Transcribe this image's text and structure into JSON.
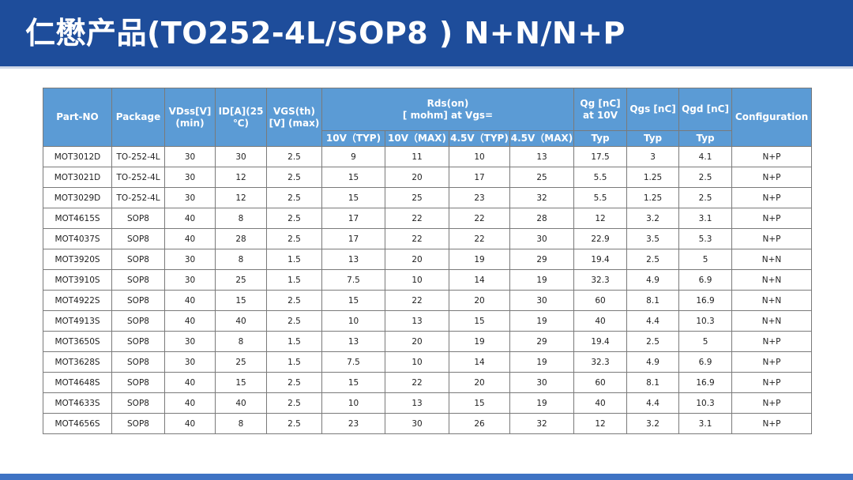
{
  "title": "仁懋产品(TO252-4L/SOP8 ) N+N/N+P",
  "colors": {
    "header_bg": "#1e4d9b",
    "table_header_bg": "#5b9bd5",
    "footer_bar": "#3f73c4"
  },
  "table": {
    "headers": {
      "part_no": "Part-NO",
      "package": "Package",
      "vdss": "VDss[V] (min)",
      "id": "ID[A](25 ℃)",
      "vgs": "VGS(th)[V] (max)",
      "rds_line1": "Rds(on)",
      "rds_line2": "[ mohm] at Vgs=",
      "qg": "Qg [nC] at 10V",
      "qgs": "Qgs [nC]",
      "qgd": "Qgd [nC]",
      "config": "Configuration"
    },
    "subheaders": [
      "10V（TYP)",
      "10V（MAX)",
      "4.5V（TYP)",
      "4.5V（MAX)",
      "Typ",
      "Typ",
      "Typ"
    ],
    "rows": [
      [
        "MOT3012D",
        "TO-252-4L",
        "30",
        "30",
        "2.5",
        "9",
        "11",
        "10",
        "13",
        "17.5",
        "3",
        "4.1",
        "N+P"
      ],
      [
        "MOT3021D",
        "TO-252-4L",
        "30",
        "12",
        "2.5",
        "15",
        "20",
        "17",
        "25",
        "5.5",
        "1.25",
        "2.5",
        "N+P"
      ],
      [
        "MOT3029D",
        "TO-252-4L",
        "30",
        "12",
        "2.5",
        "15",
        "25",
        "23",
        "32",
        "5.5",
        "1.25",
        "2.5",
        "N+P"
      ],
      [
        "MOT4615S",
        "SOP8",
        "40",
        "8",
        "2.5",
        "17",
        "22",
        "22",
        "28",
        "12",
        "3.2",
        "3.1",
        "N+P"
      ],
      [
        "MOT4037S",
        "SOP8",
        "40",
        "28",
        "2.5",
        "17",
        "22",
        "22",
        "30",
        "22.9",
        "3.5",
        "5.3",
        "N+P"
      ],
      [
        "MOT3920S",
        "SOP8",
        "30",
        "8",
        "1.5",
        "13",
        "20",
        "19",
        "29",
        "19.4",
        "2.5",
        "5",
        "N+N"
      ],
      [
        "MOT3910S",
        "SOP8",
        "30",
        "25",
        "1.5",
        "7.5",
        "10",
        "14",
        "19",
        "32.3",
        "4.9",
        "6.9",
        "N+N"
      ],
      [
        "MOT4922S",
        "SOP8",
        "40",
        "15",
        "2.5",
        "15",
        "22",
        "20",
        "30",
        "60",
        "8.1",
        "16.9",
        "N+N"
      ],
      [
        "MOT4913S",
        "SOP8",
        "40",
        "40",
        "2.5",
        "10",
        "13",
        "15",
        "19",
        "40",
        "4.4",
        "10.3",
        "N+N"
      ],
      [
        "MOT3650S",
        "SOP8",
        "30",
        "8",
        "1.5",
        "13",
        "20",
        "19",
        "29",
        "19.4",
        "2.5",
        "5",
        "N+P"
      ],
      [
        "MOT3628S",
        "SOP8",
        "30",
        "25",
        "1.5",
        "7.5",
        "10",
        "14",
        "19",
        "32.3",
        "4.9",
        "6.9",
        "N+P"
      ],
      [
        "MOT4648S",
        "SOP8",
        "40",
        "15",
        "2.5",
        "15",
        "22",
        "20",
        "30",
        "60",
        "8.1",
        "16.9",
        "N+P"
      ],
      [
        "MOT4633S",
        "SOP8",
        "40",
        "40",
        "2.5",
        "10",
        "13",
        "15",
        "19",
        "40",
        "4.4",
        "10.3",
        "N+P"
      ],
      [
        "MOT4656S",
        "SOP8",
        "40",
        "8",
        "2.5",
        "23",
        "30",
        "26",
        "32",
        "12",
        "3.2",
        "3.1",
        "N+P"
      ]
    ]
  }
}
